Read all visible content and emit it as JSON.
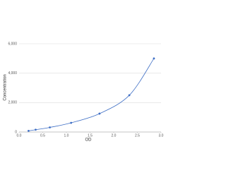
{
  "chart_data": {
    "type": "line",
    "smooth": true,
    "x_label": "OD",
    "y_label": "Concentration",
    "x": [
      0.2,
      0.35,
      0.65,
      1.1,
      1.7,
      2.33,
      2.85
    ],
    "series": [
      {
        "color": "#3f6fc5",
        "values": [
          78,
          156,
          312,
          625,
          1250,
          2500,
          5000
        ]
      }
    ],
    "xlim": [
      0,
      3
    ],
    "ylim": [
      0,
      6000
    ],
    "xticks": [
      {
        "value": 0,
        "label": "0.0"
      },
      {
        "value": 0.5,
        "label": "0.5"
      },
      {
        "value": 1,
        "label": "1.0"
      },
      {
        "value": 1.5,
        "label": "1.5"
      },
      {
        "value": 2,
        "label": "2.0"
      },
      {
        "value": 2.5,
        "label": "2.5"
      },
      {
        "value": 3,
        "label": "3.0"
      }
    ],
    "yticks": [
      0,
      {
        "value": 2000,
        "label": "2,000"
      },
      {
        "value": 4000,
        "label": "4,000"
      },
      {
        "value": 6000,
        "label": "6,000"
      }
    ],
    "grid": true
  }
}
